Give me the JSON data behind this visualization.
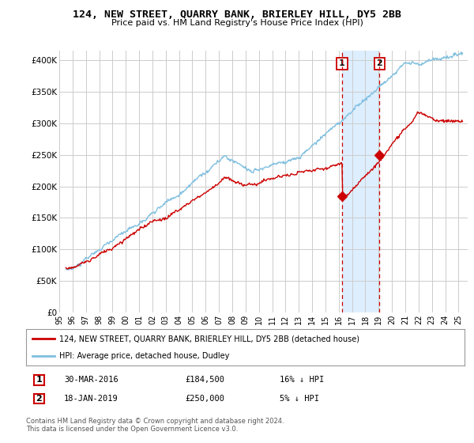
{
  "title1": "124, NEW STREET, QUARRY BANK, BRIERLEY HILL, DY5 2BB",
  "title2": "Price paid vs. HM Land Registry's House Price Index (HPI)",
  "ylabel_ticks": [
    "£0",
    "£50K",
    "£100K",
    "£150K",
    "£200K",
    "£250K",
    "£300K",
    "£350K",
    "£400K"
  ],
  "ytick_vals": [
    0,
    50000,
    100000,
    150000,
    200000,
    250000,
    300000,
    350000,
    400000
  ],
  "ylim": [
    0,
    415000
  ],
  "xlim_start": 1995.3,
  "xlim_end": 2025.7,
  "xtick_labels": [
    "95",
    "96",
    "97",
    "98",
    "99",
    "00",
    "01",
    "02",
    "03",
    "04",
    "05",
    "06",
    "07",
    "08",
    "09",
    "10",
    "11",
    "12",
    "13",
    "14",
    "15",
    "16",
    "17",
    "18",
    "19",
    "20",
    "21",
    "22",
    "23",
    "24",
    "25"
  ],
  "xticks": [
    1995,
    1996,
    1997,
    1998,
    1999,
    2000,
    2001,
    2002,
    2003,
    2004,
    2005,
    2006,
    2007,
    2008,
    2009,
    2010,
    2011,
    2012,
    2013,
    2014,
    2015,
    2016,
    2017,
    2018,
    2019,
    2020,
    2021,
    2022,
    2023,
    2024,
    2025
  ],
  "hpi_color": "#7fbfdf",
  "price_color": "#cc0000",
  "shade_color": "#ddeeff",
  "marker_color": "#cc0000",
  "sale1_x": 2016.25,
  "sale1_y": 184500,
  "sale2_x": 2019.05,
  "sale2_y": 250000,
  "sale1_label": "1",
  "sale2_label": "2",
  "legend_line1": "124, NEW STREET, QUARRY BANK, BRIERLEY HILL, DY5 2BB (detached house)",
  "legend_line2": "HPI: Average price, detached house, Dudley",
  "table_row1": [
    "1",
    "30-MAR-2016",
    "£184,500",
    "16% ↓ HPI"
  ],
  "table_row2": [
    "2",
    "18-JAN-2019",
    "£250,000",
    "5% ↓ HPI"
  ],
  "footnote": "Contains HM Land Registry data © Crown copyright and database right 2024.\nThis data is licensed under the Open Government Licence v3.0.",
  "bg_color": "#ffffff",
  "plot_bg_color": "#ffffff",
  "grid_color": "#cccccc"
}
